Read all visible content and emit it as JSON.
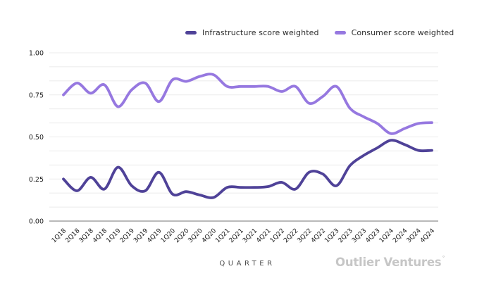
{
  "legend": {
    "items": [
      {
        "label": "Infrastructure score weighted",
        "color": "#4f4298"
      },
      {
        "label": "Consumer score weighted",
        "color": "#9678e0"
      }
    ]
  },
  "chart_data": {
    "type": "line",
    "title": "",
    "xlabel": "QUARTER",
    "ylabel": "",
    "ylim": [
      0,
      1
    ],
    "yticks": [
      0,
      0.25,
      0.5,
      0.75,
      1.0
    ],
    "ytick_labels": [
      "0.00",
      "0.25",
      "0.50",
      "0.75",
      "1.00"
    ],
    "grid": "horizontal only; 2 minor gridlines between each labeled tick",
    "legend_position": "top-center",
    "x": [
      "1Q18",
      "2Q18",
      "3Q18",
      "4Q18",
      "1Q19",
      "2Q19",
      "3Q19",
      "4Q19",
      "1Q20",
      "2Q20",
      "3Q20",
      "4Q20",
      "1Q21",
      "2Q21",
      "3Q21",
      "4Q21",
      "1Q22",
      "2Q22",
      "3Q22",
      "4Q22",
      "1Q23",
      "2Q23",
      "3Q23",
      "4Q23",
      "1Q24",
      "2Q24",
      "3Q24",
      "4Q24"
    ],
    "series": [
      {
        "name": "Infrastructure score weighted",
        "color": "#4f4298",
        "values": [
          0.25,
          0.18,
          0.26,
          0.19,
          0.32,
          0.21,
          0.18,
          0.29,
          0.16,
          0.175,
          0.155,
          0.14,
          0.2,
          0.2,
          0.2,
          0.205,
          0.23,
          0.19,
          0.29,
          0.28,
          0.21,
          0.33,
          0.39,
          0.435,
          0.48,
          0.455,
          0.42,
          0.42
        ]
      },
      {
        "name": "Consumer score weighted",
        "color": "#9678e0",
        "values": [
          0.75,
          0.82,
          0.76,
          0.81,
          0.68,
          0.78,
          0.82,
          0.71,
          0.84,
          0.83,
          0.86,
          0.87,
          0.8,
          0.8,
          0.8,
          0.8,
          0.77,
          0.8,
          0.7,
          0.74,
          0.8,
          0.67,
          0.62,
          0.58,
          0.52,
          0.55,
          0.58,
          0.585
        ]
      }
    ],
    "axis_color": "#8f8f8f",
    "gridline_color": "#ebebeb",
    "tick_text_color": "#1a1a1a"
  },
  "footer": {
    "xlabel": "QUARTER",
    "brand": "Outlier Ventures",
    "brand_mark": "°"
  }
}
